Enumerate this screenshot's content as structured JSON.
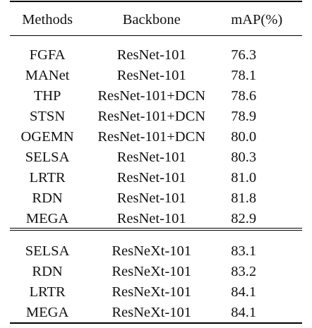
{
  "table": {
    "headers": {
      "method": "Methods",
      "backbone": "Backbone",
      "map": "mAP(%)"
    },
    "group1": [
      {
        "method": "FGFA",
        "backbone": "ResNet-101",
        "map": "76.3"
      },
      {
        "method": "MANet",
        "backbone": "ResNet-101",
        "map": "78.1"
      },
      {
        "method": "THP",
        "backbone": "ResNet-101+DCN",
        "map": "78.6"
      },
      {
        "method": "STSN",
        "backbone": "ResNet-101+DCN",
        "map": "78.9"
      },
      {
        "method": "OGEMN",
        "backbone": "ResNet-101+DCN",
        "map": "80.0"
      },
      {
        "method": "SELSA",
        "backbone": "ResNet-101",
        "map": "80.3"
      },
      {
        "method": "LRTR",
        "backbone": "ResNet-101",
        "map": "81.0"
      },
      {
        "method": "RDN",
        "backbone": "ResNet-101",
        "map": "81.8"
      },
      {
        "method": "MEGA",
        "backbone": "ResNet-101",
        "map": "82.9"
      }
    ],
    "group2": [
      {
        "method": "SELSA",
        "backbone": "ResNeXt-101",
        "map": "83.1"
      },
      {
        "method": "RDN",
        "backbone": "ResNeXt-101",
        "map": "83.2"
      },
      {
        "method": "LRTR",
        "backbone": "ResNeXt-101",
        "map": "84.1"
      },
      {
        "method": "MEGA",
        "backbone": "ResNeXt-101",
        "map": "84.1"
      }
    ]
  }
}
